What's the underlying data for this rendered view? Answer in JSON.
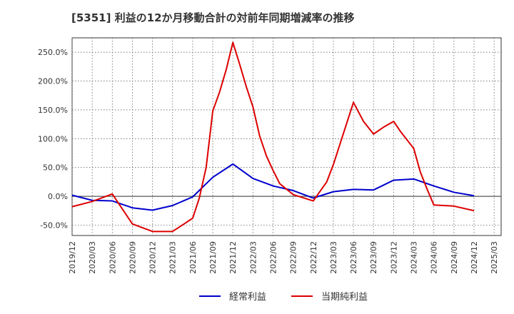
{
  "chart_data": {
    "type": "line",
    "title": "[5351]  利益の12か月移動合計の対前年同期増減率の推移",
    "xlabel": "",
    "ylabel": "",
    "ylim": [
      -68,
      275
    ],
    "grid": true,
    "legend_position": "bottom-center",
    "y_ticks": [
      -50,
      0,
      50,
      100,
      150,
      200,
      250
    ],
    "y_tick_labels": [
      "-50.0%",
      "0.0%",
      "50.0%",
      "100.0%",
      "150.0%",
      "200.0%",
      "250.0%"
    ],
    "x_tick_labels": [
      "2019/12",
      "2020/03",
      "2020/06",
      "2020/09",
      "2020/12",
      "2021/03",
      "2021/06",
      "2021/09",
      "2021/12",
      "2022/03",
      "2022/06",
      "2022/09",
      "2022/12",
      "2023/03",
      "2023/06",
      "2023/09",
      "2023/12",
      "2024/03",
      "2024/06",
      "2024/09",
      "2024/12",
      "2025/03"
    ],
    "series": [
      {
        "name": "経常利益",
        "color": "#0000cc",
        "points": [
          [
            0,
            2
          ],
          [
            1,
            -7
          ],
          [
            2,
            -8
          ],
          [
            3,
            -20
          ],
          [
            4,
            -24
          ],
          [
            5,
            -16
          ],
          [
            6,
            -1
          ],
          [
            7,
            33
          ],
          [
            8,
            56
          ],
          [
            9,
            31
          ],
          [
            10,
            18
          ],
          [
            11,
            10
          ],
          [
            12,
            -3
          ],
          [
            13,
            8
          ],
          [
            14,
            12
          ],
          [
            15,
            11
          ],
          [
            16,
            28
          ],
          [
            17,
            30
          ],
          [
            18,
            18
          ],
          [
            19,
            7
          ],
          [
            20,
            1
          ]
        ]
      },
      {
        "name": "当期純利益",
        "color": "#dd0000",
        "points": [
          [
            0,
            -18
          ],
          [
            1,
            -9
          ],
          [
            2,
            4
          ],
          [
            3,
            -48
          ],
          [
            4,
            -61
          ],
          [
            5,
            -61
          ],
          [
            6,
            -38
          ],
          [
            6.33,
            -3
          ],
          [
            6.67,
            50
          ],
          [
            7,
            148
          ],
          [
            7.33,
            180
          ],
          [
            7.67,
            220
          ],
          [
            8,
            267
          ],
          [
            8.33,
            230
          ],
          [
            8.67,
            190
          ],
          [
            9,
            155
          ],
          [
            9.33,
            105
          ],
          [
            9.67,
            70
          ],
          [
            10,
            45
          ],
          [
            10.33,
            22
          ],
          [
            11,
            3
          ],
          [
            12,
            -8
          ],
          [
            12.67,
            25
          ],
          [
            13,
            55
          ],
          [
            14,
            163
          ],
          [
            14.5,
            130
          ],
          [
            15,
            108
          ],
          [
            15.5,
            120
          ],
          [
            16,
            130
          ],
          [
            16.33,
            113
          ],
          [
            17,
            83
          ],
          [
            17.33,
            42
          ],
          [
            17.67,
            12
          ],
          [
            18,
            -15
          ],
          [
            19,
            -17
          ],
          [
            20,
            -25
          ]
        ]
      }
    ]
  }
}
